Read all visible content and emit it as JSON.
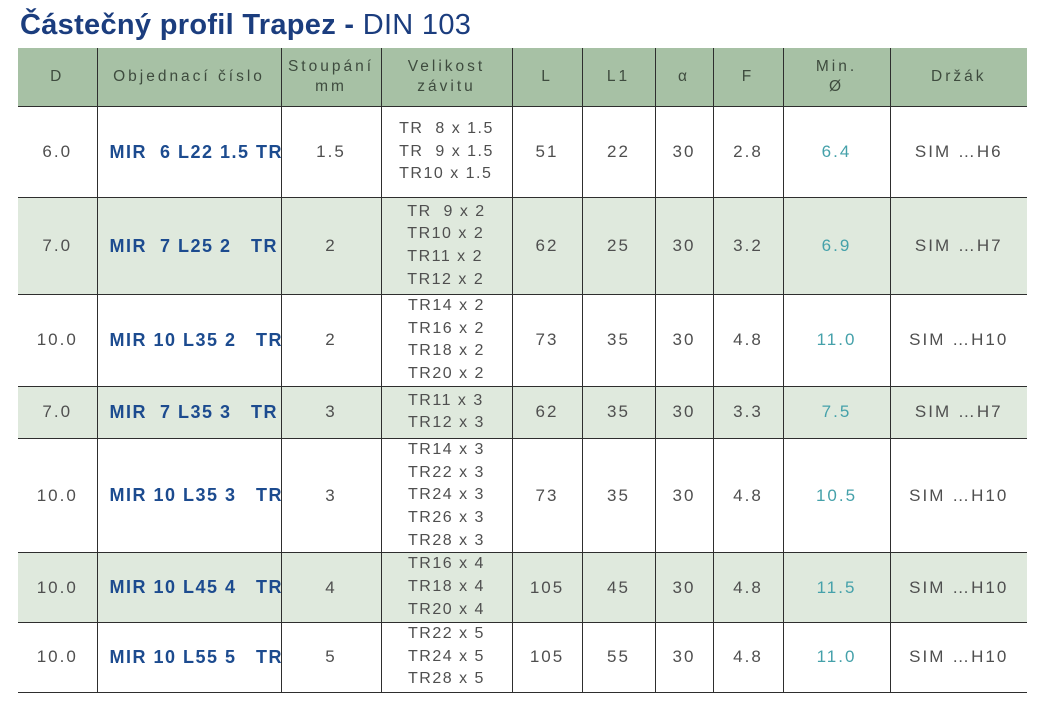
{
  "title": {
    "main": "Částečný profil Trapez - ",
    "standard": "DIN 103"
  },
  "colors": {
    "title_navy": "#1b3d7e",
    "order_navy": "#1c4b8f",
    "header_green": "#a7c1a5",
    "row_green": "#dfe9dd",
    "min_diameter_teal": "#45a1aa",
    "cell_text": "#4f4f4f",
    "border": "#2e2e2e"
  },
  "table": {
    "header": {
      "d": "D",
      "order": "Objednací číslo",
      "pitch_line1": "Stoupání",
      "pitch_line2": "mm",
      "size_line1": "Velikost",
      "size_line2": "závitu",
      "l": "L",
      "l1": "L1",
      "alpha": "α",
      "f": "F",
      "min_line1": "Min.",
      "min_line2": "Ø",
      "holder": "Držák"
    },
    "rows": [
      {
        "d": "6.0",
        "order": "MIR  6 L22 1.5 TR",
        "pitch": "1.5",
        "threads": [
          "TR  8 x 1.5",
          "TR  9 x 1.5",
          "TR10 x 1.5"
        ],
        "l": "51",
        "l1": "22",
        "alpha": "30",
        "f": "2.8",
        "min_d": "6.4",
        "holder": "SIM …H6"
      },
      {
        "d": "7.0",
        "order": "MIR  7 L25 2   TR",
        "pitch": "2",
        "threads": [
          "TR  9 x 2",
          "TR10 x 2",
          "TR11 x 2",
          "TR12 x 2"
        ],
        "l": "62",
        "l1": "25",
        "alpha": "30",
        "f": "3.2",
        "min_d": "6.9",
        "holder": "SIM …H7"
      },
      {
        "d": "10.0",
        "order": "MIR 10 L35 2   TR",
        "pitch": "2",
        "threads": [
          "TR14 x 2",
          "TR16 x 2",
          "TR18 x 2",
          "TR20 x 2"
        ],
        "l": "73",
        "l1": "35",
        "alpha": "30",
        "f": "4.8",
        "min_d": "11.0",
        "holder": "SIM …H10"
      },
      {
        "d": "7.0",
        "order": "MIR  7 L35 3   TR",
        "pitch": "3",
        "threads": [
          "TR11 x 3",
          "TR12 x 3"
        ],
        "l": "62",
        "l1": "35",
        "alpha": "30",
        "f": "3.3",
        "min_d": "7.5",
        "holder": "SIM …H7"
      },
      {
        "d": "10.0",
        "order": "MIR 10 L35 3   TR",
        "pitch": "3",
        "threads": [
          "TR14 x 3",
          "TR22 x 3",
          "TR24 x 3",
          "TR26 x 3",
          "TR28 x 3"
        ],
        "l": "73",
        "l1": "35",
        "alpha": "30",
        "f": "4.8",
        "min_d": "10.5",
        "holder": "SIM …H10"
      },
      {
        "d": "10.0",
        "order": "MIR 10 L45 4   TR",
        "pitch": "4",
        "threads": [
          "TR16 x 4",
          "TR18 x 4",
          "TR20 x 4"
        ],
        "l": "105",
        "l1": "45",
        "alpha": "30",
        "f": "4.8",
        "min_d": "11.5",
        "holder": "SIM …H10"
      },
      {
        "d": "10.0",
        "order": "MIR 10 L55 5   TR",
        "pitch": "5",
        "threads": [
          "TR22 x 5",
          "TR24 x 5",
          "TR28 x 5"
        ],
        "l": "105",
        "l1": "55",
        "alpha": "30",
        "f": "4.8",
        "min_d": "11.0",
        "holder": "SIM …H10"
      }
    ]
  }
}
